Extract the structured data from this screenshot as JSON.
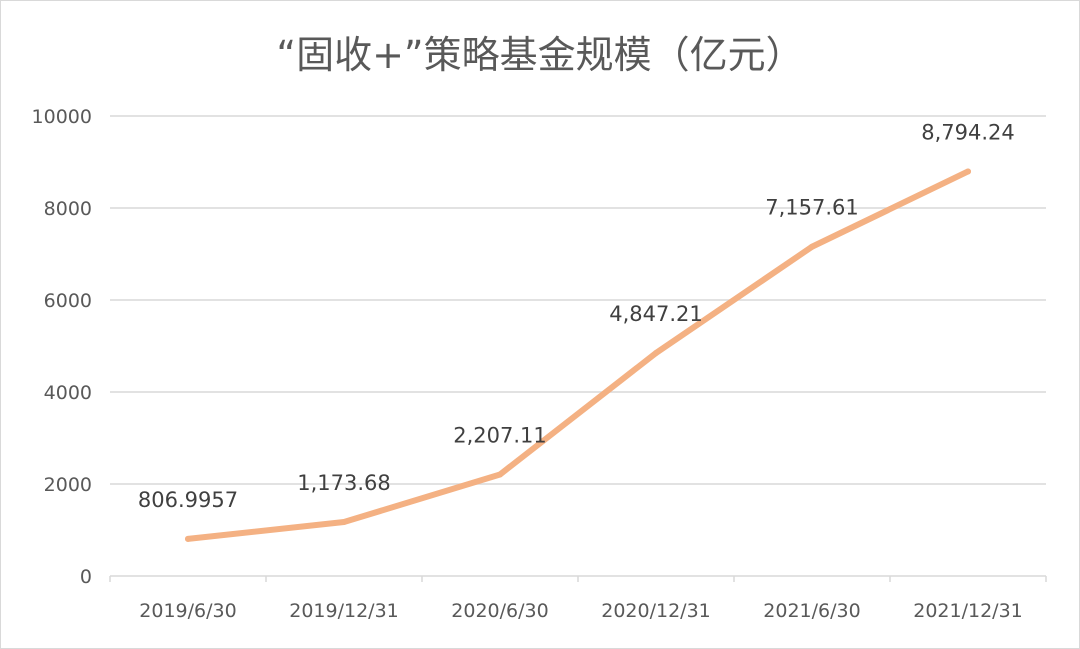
{
  "chart_data": {
    "type": "line",
    "title": "“固收+”策略基金规模（亿元）",
    "categories": [
      "2019/6/30",
      "2019/12/31",
      "2020/6/30",
      "2020/12/31",
      "2021/6/30",
      "2021/12/31"
    ],
    "series": [
      {
        "values": [
          806.9957,
          1173.68,
          2207.11,
          4847.21,
          7157.61,
          8794.24
        ],
        "labels": [
          "806.9957",
          "1,173.68",
          "2,207.11",
          "4,847.21",
          "7,157.61",
          "8,794.24"
        ],
        "color": "#F4B183"
      }
    ],
    "yticks": [
      "0",
      "2000",
      "4000",
      "6000",
      "8000",
      "10000"
    ],
    "ylim": [
      0,
      10000
    ],
    "grid": true,
    "gridColor": "#d9d9d9",
    "legend": "none"
  }
}
